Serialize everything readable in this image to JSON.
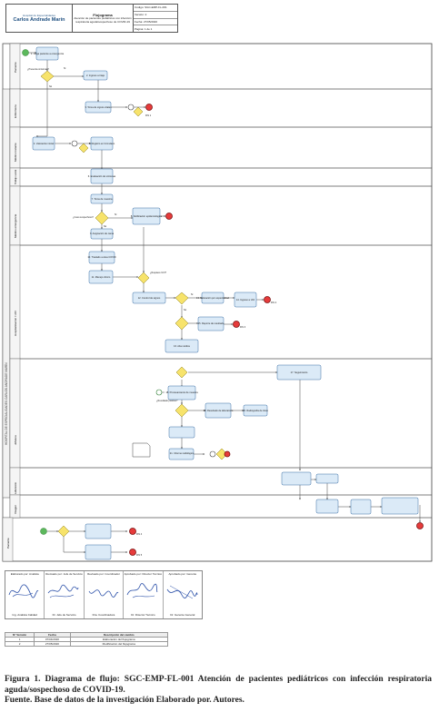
{
  "header": {
    "org_small": "Hospital de Especialidades",
    "org_name": "Carlos Andrade Marín",
    "title": "Flujograma",
    "subtitle": "Atención de pacientes pediátricos con infección respiratoria aguda/sospechoso de COVID-19",
    "code": "Código: SGC-EMP-FL-001",
    "version": "Versión: 2",
    "date": "Fecha: 27/05/2020",
    "page": "Página: 1 de 1"
  },
  "lanes": [
    "Paciente",
    "Enfermería",
    "Médico tratante",
    "Trabajo social",
    "Médico emergencia",
    "Hospitalización / UCI",
    "Jefatura",
    "Laboratorio",
    "Imagen"
  ],
  "pool_label": "HOSPITAL DE ESPECIALIDADES CARLOS ANDRADE MARÍN",
  "process_labels": [
    "1. Llega paciente a emergencia",
    "2. Ingreso a triaje",
    "3. Toma de signos vitales",
    "4. Valoración inicial",
    "5. Registro en formulario",
    "6. Evaluación de síntomas",
    "7. Toma de muestra",
    "8. Notificación epidemiológica",
    "9. Asignación de cama",
    "10. Traslado a área COVID",
    "11. Manejo clínico",
    "12. Control de signos",
    "13. Valoración por especialidad",
    "14. Ingreso a UCI",
    "15. Reporte de resultado",
    "16. Alta médica",
    "17. Seguimiento",
    "18. Procesamiento de muestra",
    "19. Resultado de laboratorio",
    "20. Radiografía de tórax",
    "21. Informe radiológico"
  ],
  "decision_labels": [
    "¿Presenta síntomas?",
    "¿Caso sospechoso?",
    "¿Requiere UCI?",
    "¿Resultado positivo?"
  ],
  "end_labels": [
    "FIN 1",
    "FIN 2",
    "FIN 3",
    "FIN 4",
    "FIN 5"
  ],
  "decision_yes": "Sí",
  "decision_no": "No",
  "signatures": [
    {
      "role": "Elaborado por: Analista",
      "name": "Ing. Analista Calidad"
    },
    {
      "role": "Revisado por: Jefe de Servicio",
      "name": "Dr. Jefe de Servicio"
    },
    {
      "role": "Revisado por: Coordinador",
      "name": "Dra. Coordinadora"
    },
    {
      "role": "Aprobado por: Director Técnico",
      "name": "Dr. Director Técnico"
    },
    {
      "role": "Aprobado por: Gerente",
      "name": "Dr. Gerente General"
    }
  ],
  "versions": {
    "headers": [
      "N° Versión",
      "Fecha",
      "Descripción del cambio"
    ],
    "rows": [
      [
        "1",
        "07/04/2020",
        "Elaboración del flujograma"
      ],
      [
        "2",
        "27/05/2020",
        "Modificación del flujograma"
      ]
    ]
  },
  "caption": {
    "figure": "Figura 1. Diagrama de flujo: SGC-EMP-FL-001 Atención de pacientes pediátricos con infección respiratoria aguda/sospechoso de COVID-19.",
    "source": "Fuente. Base de datos de la investigación Elaborado por. Autores."
  },
  "colors": {
    "task_fill": "#dbeaf7",
    "task_stroke": "#3a6ea5",
    "gateway_fill": "#f7e36b",
    "end_fill": "#e63b3b",
    "start_fill": "#5cb85c",
    "lane_stroke": "#555555"
  }
}
